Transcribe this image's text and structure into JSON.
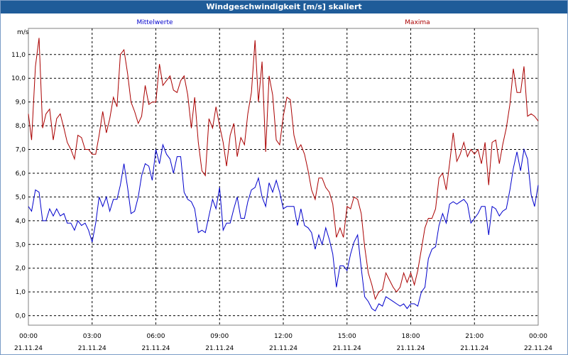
{
  "window": {
    "title": "Windgeschwindigkeit [m/s] skaliert"
  },
  "chart_data": {
    "type": "line",
    "title": "Windgeschwindigkeit [m/s] skaliert",
    "ylabel": "m/s",
    "ylim": [
      -0.4,
      12.1
    ],
    "ylim_note": "",
    "xlim_hours": [
      0,
      24
    ],
    "grid": true,
    "y_ticks": [
      "0,0",
      "1,0",
      "2,0",
      "3,0",
      "4,0",
      "5,0",
      "6,0",
      "7,0",
      "8,0",
      "9,0",
      "10,0",
      "11,0"
    ],
    "x_ticks": [
      {
        "time": "00:00",
        "date": "21.11.24"
      },
      {
        "time": "03:00",
        "date": "21.11.24"
      },
      {
        "time": "06:00",
        "date": "21.11.24"
      },
      {
        "time": "09:00",
        "date": "21.11.24"
      },
      {
        "time": "12:00",
        "date": "21.11.24"
      },
      {
        "time": "15:00",
        "date": "21.11.24"
      },
      {
        "time": "18:00",
        "date": "21.11.24"
      },
      {
        "time": "21:00",
        "date": "21.11.24"
      },
      {
        "time": "00:00",
        "date": "22.11.24"
      }
    ],
    "series": [
      {
        "name": "Mittelwerte",
        "color": "#0000cc",
        "points": [
          [
            0.0,
            4.6
          ],
          [
            0.15,
            4.4
          ],
          [
            0.33,
            5.3
          ],
          [
            0.5,
            5.2
          ],
          [
            0.67,
            4.0
          ],
          [
            0.83,
            4.0
          ],
          [
            1.0,
            4.5
          ],
          [
            1.17,
            4.2
          ],
          [
            1.33,
            4.5
          ],
          [
            1.5,
            4.2
          ],
          [
            1.67,
            4.3
          ],
          [
            1.83,
            3.9
          ],
          [
            2.0,
            3.9
          ],
          [
            2.17,
            3.6
          ],
          [
            2.33,
            4.0
          ],
          [
            2.5,
            3.8
          ],
          [
            2.67,
            3.9
          ],
          [
            2.83,
            3.6
          ],
          [
            3.0,
            3.1
          ],
          [
            3.17,
            3.9
          ],
          [
            3.33,
            5.0
          ],
          [
            3.5,
            4.6
          ],
          [
            3.67,
            5.0
          ],
          [
            3.83,
            4.4
          ],
          [
            4.0,
            4.9
          ],
          [
            4.17,
            4.9
          ],
          [
            4.33,
            5.5
          ],
          [
            4.5,
            6.4
          ],
          [
            4.67,
            5.4
          ],
          [
            4.83,
            4.3
          ],
          [
            5.0,
            4.4
          ],
          [
            5.17,
            5.0
          ],
          [
            5.33,
            5.9
          ],
          [
            5.5,
            6.4
          ],
          [
            5.67,
            6.3
          ],
          [
            5.83,
            5.7
          ],
          [
            6.0,
            7.0
          ],
          [
            6.17,
            6.4
          ],
          [
            6.33,
            7.2
          ],
          [
            6.5,
            6.8
          ],
          [
            6.67,
            6.6
          ],
          [
            6.83,
            6.0
          ],
          [
            7.0,
            6.7
          ],
          [
            7.17,
            6.7
          ],
          [
            7.33,
            5.2
          ],
          [
            7.5,
            4.9
          ],
          [
            7.67,
            4.8
          ],
          [
            7.83,
            4.5
          ],
          [
            8.0,
            3.5
          ],
          [
            8.17,
            3.6
          ],
          [
            8.33,
            3.5
          ],
          [
            8.5,
            4.2
          ],
          [
            8.67,
            4.9
          ],
          [
            8.83,
            4.5
          ],
          [
            9.0,
            5.4
          ],
          [
            9.17,
            3.6
          ],
          [
            9.33,
            3.9
          ],
          [
            9.5,
            3.9
          ],
          [
            9.67,
            4.5
          ],
          [
            9.83,
            5.0
          ],
          [
            10.0,
            4.1
          ],
          [
            10.17,
            4.1
          ],
          [
            10.33,
            4.8
          ],
          [
            10.5,
            5.3
          ],
          [
            10.67,
            5.4
          ],
          [
            10.83,
            5.8
          ],
          [
            11.0,
            5.0
          ],
          [
            11.17,
            4.6
          ],
          [
            11.33,
            5.6
          ],
          [
            11.5,
            5.2
          ],
          [
            11.67,
            5.7
          ],
          [
            11.83,
            5.2
          ],
          [
            12.0,
            4.5
          ],
          [
            12.17,
            4.6
          ],
          [
            12.33,
            4.6
          ],
          [
            12.5,
            4.6
          ],
          [
            12.67,
            3.8
          ],
          [
            12.83,
            4.5
          ],
          [
            13.0,
            3.8
          ],
          [
            13.17,
            3.7
          ],
          [
            13.33,
            3.5
          ],
          [
            13.5,
            2.8
          ],
          [
            13.67,
            3.4
          ],
          [
            13.83,
            3.0
          ],
          [
            14.0,
            3.7
          ],
          [
            14.17,
            3.2
          ],
          [
            14.33,
            2.6
          ],
          [
            14.5,
            1.2
          ],
          [
            14.67,
            2.1
          ],
          [
            14.83,
            2.1
          ],
          [
            15.0,
            1.9
          ],
          [
            15.17,
            2.6
          ],
          [
            15.33,
            3.1
          ],
          [
            15.5,
            3.4
          ],
          [
            15.67,
            2.0
          ],
          [
            15.83,
            0.8
          ],
          [
            16.0,
            0.6
          ],
          [
            16.17,
            0.3
          ],
          [
            16.33,
            0.2
          ],
          [
            16.5,
            0.5
          ],
          [
            16.67,
            0.4
          ],
          [
            16.83,
            0.8
          ],
          [
            17.0,
            0.7
          ],
          [
            17.17,
            0.6
          ],
          [
            17.33,
            0.5
          ],
          [
            17.5,
            0.4
          ],
          [
            17.67,
            0.5
          ],
          [
            17.83,
            0.3
          ],
          [
            18.0,
            0.5
          ],
          [
            18.17,
            0.5
          ],
          [
            18.33,
            0.4
          ],
          [
            18.5,
            1.0
          ],
          [
            18.67,
            1.2
          ],
          [
            18.83,
            2.4
          ],
          [
            19.0,
            2.8
          ],
          [
            19.17,
            2.9
          ],
          [
            19.33,
            3.8
          ],
          [
            19.5,
            4.3
          ],
          [
            19.67,
            3.9
          ],
          [
            19.83,
            4.7
          ],
          [
            20.0,
            4.8
          ],
          [
            20.17,
            4.7
          ],
          [
            20.33,
            4.8
          ],
          [
            20.5,
            4.9
          ],
          [
            20.67,
            4.7
          ],
          [
            20.83,
            3.9
          ],
          [
            21.0,
            4.1
          ],
          [
            21.17,
            4.3
          ],
          [
            21.33,
            4.6
          ],
          [
            21.5,
            4.6
          ],
          [
            21.67,
            3.4
          ],
          [
            21.83,
            4.6
          ],
          [
            22.0,
            4.5
          ],
          [
            22.17,
            4.2
          ],
          [
            22.33,
            4.4
          ],
          [
            22.5,
            4.5
          ],
          [
            22.67,
            5.3
          ],
          [
            22.83,
            6.2
          ],
          [
            23.0,
            6.9
          ],
          [
            23.17,
            6.1
          ],
          [
            23.33,
            7.0
          ],
          [
            23.5,
            6.6
          ],
          [
            23.67,
            5.1
          ],
          [
            23.83,
            4.6
          ],
          [
            24.0,
            5.5
          ]
        ]
      },
      {
        "name": "Maxima",
        "color": "#aa0000",
        "points": [
          [
            0.0,
            8.5
          ],
          [
            0.15,
            7.4
          ],
          [
            0.33,
            10.5
          ],
          [
            0.5,
            11.7
          ],
          [
            0.67,
            7.9
          ],
          [
            0.83,
            8.5
          ],
          [
            1.0,
            8.7
          ],
          [
            1.17,
            7.4
          ],
          [
            1.33,
            8.3
          ],
          [
            1.5,
            8.5
          ],
          [
            1.67,
            7.9
          ],
          [
            1.83,
            7.3
          ],
          [
            2.0,
            7.0
          ],
          [
            2.17,
            6.6
          ],
          [
            2.33,
            7.6
          ],
          [
            2.5,
            7.5
          ],
          [
            2.67,
            7.0
          ],
          [
            2.83,
            7.0
          ],
          [
            3.0,
            6.8
          ],
          [
            3.17,
            6.8
          ],
          [
            3.33,
            7.6
          ],
          [
            3.5,
            8.6
          ],
          [
            3.67,
            7.7
          ],
          [
            3.83,
            8.3
          ],
          [
            4.0,
            9.2
          ],
          [
            4.17,
            8.8
          ],
          [
            4.33,
            11.0
          ],
          [
            4.5,
            11.2
          ],
          [
            4.67,
            10.2
          ],
          [
            4.83,
            9.0
          ],
          [
            5.0,
            8.6
          ],
          [
            5.17,
            8.1
          ],
          [
            5.33,
            8.4
          ],
          [
            5.5,
            9.7
          ],
          [
            5.67,
            8.9
          ],
          [
            5.83,
            9.0
          ],
          [
            6.0,
            9.0
          ],
          [
            6.17,
            10.6
          ],
          [
            6.33,
            9.7
          ],
          [
            6.5,
            9.9
          ],
          [
            6.67,
            10.1
          ],
          [
            6.83,
            9.5
          ],
          [
            7.0,
            9.4
          ],
          [
            7.17,
            9.9
          ],
          [
            7.33,
            10.1
          ],
          [
            7.5,
            9.3
          ],
          [
            7.67,
            7.9
          ],
          [
            7.83,
            9.2
          ],
          [
            8.0,
            7.3
          ],
          [
            8.17,
            6.1
          ],
          [
            8.33,
            5.9
          ],
          [
            8.5,
            8.3
          ],
          [
            8.67,
            7.9
          ],
          [
            8.83,
            8.8
          ],
          [
            9.0,
            8.0
          ],
          [
            9.17,
            7.3
          ],
          [
            9.33,
            6.3
          ],
          [
            9.5,
            7.6
          ],
          [
            9.67,
            8.1
          ],
          [
            9.83,
            6.7
          ],
          [
            10.0,
            7.5
          ],
          [
            10.17,
            7.2
          ],
          [
            10.33,
            8.5
          ],
          [
            10.5,
            9.4
          ],
          [
            10.67,
            11.6
          ],
          [
            10.83,
            9.0
          ],
          [
            11.0,
            10.7
          ],
          [
            11.17,
            6.9
          ],
          [
            11.33,
            10.1
          ],
          [
            11.5,
            9.3
          ],
          [
            11.67,
            7.4
          ],
          [
            11.83,
            7.2
          ],
          [
            12.0,
            8.4
          ],
          [
            12.17,
            9.2
          ],
          [
            12.33,
            9.1
          ],
          [
            12.5,
            7.6
          ],
          [
            12.67,
            7.0
          ],
          [
            12.83,
            7.2
          ],
          [
            13.0,
            6.8
          ],
          [
            13.17,
            6.1
          ],
          [
            13.33,
            5.3
          ],
          [
            13.5,
            4.9
          ],
          [
            13.67,
            5.8
          ],
          [
            13.83,
            5.8
          ],
          [
            14.0,
            5.4
          ],
          [
            14.17,
            5.2
          ],
          [
            14.33,
            4.7
          ],
          [
            14.5,
            3.3
          ],
          [
            14.67,
            3.7
          ],
          [
            14.83,
            3.3
          ],
          [
            15.0,
            4.6
          ],
          [
            15.17,
            4.5
          ],
          [
            15.33,
            5.0
          ],
          [
            15.5,
            4.9
          ],
          [
            15.67,
            4.3
          ],
          [
            15.83,
            2.9
          ],
          [
            16.0,
            1.8
          ],
          [
            16.17,
            1.3
          ],
          [
            16.33,
            0.7
          ],
          [
            16.5,
            1.0
          ],
          [
            16.67,
            1.1
          ],
          [
            16.83,
            1.8
          ],
          [
            17.0,
            1.5
          ],
          [
            17.17,
            1.2
          ],
          [
            17.33,
            1.0
          ],
          [
            17.5,
            1.2
          ],
          [
            17.67,
            1.8
          ],
          [
            17.83,
            1.4
          ],
          [
            18.0,
            1.8
          ],
          [
            18.17,
            1.3
          ],
          [
            18.33,
            1.9
          ],
          [
            18.5,
            2.8
          ],
          [
            18.67,
            3.7
          ],
          [
            18.83,
            4.1
          ],
          [
            19.0,
            4.1
          ],
          [
            19.17,
            4.5
          ],
          [
            19.33,
            5.8
          ],
          [
            19.5,
            6.0
          ],
          [
            19.67,
            5.3
          ],
          [
            19.83,
            6.4
          ],
          [
            20.0,
            7.7
          ],
          [
            20.17,
            6.5
          ],
          [
            20.33,
            6.8
          ],
          [
            20.5,
            7.3
          ],
          [
            20.67,
            6.7
          ],
          [
            20.83,
            7.0
          ],
          [
            21.0,
            6.8
          ],
          [
            21.17,
            7.0
          ],
          [
            21.33,
            6.4
          ],
          [
            21.5,
            7.3
          ],
          [
            21.67,
            5.5
          ],
          [
            21.83,
            7.3
          ],
          [
            22.0,
            7.4
          ],
          [
            22.17,
            6.4
          ],
          [
            22.33,
            7.2
          ],
          [
            22.5,
            7.9
          ],
          [
            22.67,
            8.9
          ],
          [
            22.83,
            10.4
          ],
          [
            23.0,
            9.4
          ],
          [
            23.17,
            9.4
          ],
          [
            23.33,
            10.5
          ],
          [
            23.5,
            8.4
          ],
          [
            23.67,
            8.5
          ],
          [
            23.83,
            8.4
          ],
          [
            24.0,
            8.2
          ]
        ]
      }
    ]
  }
}
